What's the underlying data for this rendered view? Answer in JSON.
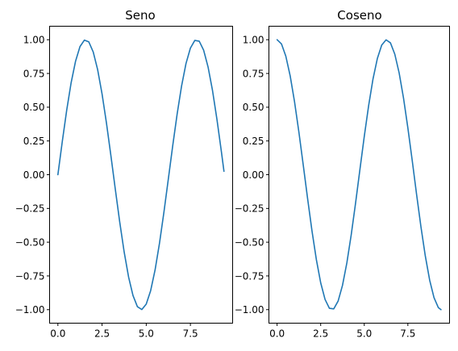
{
  "chart_data": [
    {
      "type": "line",
      "title": "Seno",
      "xlim": [
        -0.47,
        9.89
      ],
      "ylim": [
        -1.1,
        1.1
      ],
      "xticks": [
        0.0,
        2.5,
        5.0,
        7.5
      ],
      "xtick_labels": [
        "0.0",
        "2.5",
        "5.0",
        "7.5"
      ],
      "yticks": [
        1.0,
        0.75,
        0.5,
        0.25,
        0.0,
        -0.25,
        -0.5,
        -0.75,
        -1.0
      ],
      "ytick_labels": [
        "1.00",
        "0.75",
        "0.50",
        "0.25",
        "0.00",
        "−0.25",
        "−0.50",
        "−0.75",
        "−1.00"
      ],
      "grid": false,
      "series": [
        {
          "color": "#1f77b4",
          "x": [
            0.0,
            0.25,
            0.5,
            0.75,
            1.0,
            1.25,
            1.5,
            1.75,
            2.0,
            2.25,
            2.5,
            2.75,
            3.0,
            3.25,
            3.5,
            3.75,
            4.0,
            4.25,
            4.5,
            4.75,
            5.0,
            5.25,
            5.5,
            5.75,
            6.0,
            6.25,
            6.5,
            6.75,
            7.0,
            7.25,
            7.5,
            7.75,
            8.0,
            8.25,
            8.5,
            8.75,
            9.0,
            9.25,
            9.4
          ],
          "y": [
            0.0,
            0.247,
            0.479,
            0.682,
            0.841,
            0.949,
            0.997,
            0.984,
            0.909,
            0.778,
            0.598,
            0.382,
            0.141,
            -0.108,
            -0.351,
            -0.572,
            -0.757,
            -0.895,
            -0.978,
            -0.999,
            -0.959,
            -0.859,
            -0.706,
            -0.508,
            -0.279,
            -0.033,
            0.215,
            0.45,
            0.657,
            0.823,
            0.938,
            0.995,
            0.989,
            0.922,
            0.798,
            0.625,
            0.412,
            0.174,
            0.025
          ]
        }
      ]
    },
    {
      "type": "line",
      "title": "Coseno",
      "xlim": [
        -0.47,
        9.89
      ],
      "ylim": [
        -1.1,
        1.1
      ],
      "xticks": [
        0.0,
        2.5,
        5.0,
        7.5
      ],
      "xtick_labels": [
        "0.0",
        "2.5",
        "5.0",
        "7.5"
      ],
      "yticks": [
        1.0,
        0.75,
        0.5,
        0.25,
        0.0,
        -0.25,
        -0.5,
        -0.75,
        -1.0
      ],
      "ytick_labels": [
        "1.00",
        "0.75",
        "0.50",
        "0.25",
        "0.00",
        "−0.25",
        "−0.50",
        "−0.75",
        "−1.00"
      ],
      "grid": false,
      "series": [
        {
          "color": "#1f77b4",
          "x": [
            0.0,
            0.25,
            0.5,
            0.75,
            1.0,
            1.25,
            1.5,
            1.75,
            2.0,
            2.25,
            2.5,
            2.75,
            3.0,
            3.25,
            3.5,
            3.75,
            4.0,
            4.25,
            4.5,
            4.75,
            5.0,
            5.25,
            5.5,
            5.75,
            6.0,
            6.25,
            6.5,
            6.75,
            7.0,
            7.25,
            7.5,
            7.75,
            8.0,
            8.25,
            8.5,
            8.75,
            9.0,
            9.25,
            9.4
          ],
          "y": [
            1.0,
            0.969,
            0.878,
            0.732,
            0.54,
            0.315,
            0.071,
            -0.178,
            -0.416,
            -0.628,
            -0.801,
            -0.924,
            -0.99,
            -0.994,
            -0.936,
            -0.82,
            -0.654,
            -0.446,
            -0.211,
            0.038,
            0.284,
            0.512,
            0.709,
            0.861,
            0.96,
            0.999,
            0.977,
            0.893,
            0.754,
            0.568,
            0.347,
            0.105,
            -0.146,
            -0.386,
            -0.602,
            -0.781,
            -0.911,
            -0.985,
            -1.0
          ]
        }
      ]
    }
  ]
}
